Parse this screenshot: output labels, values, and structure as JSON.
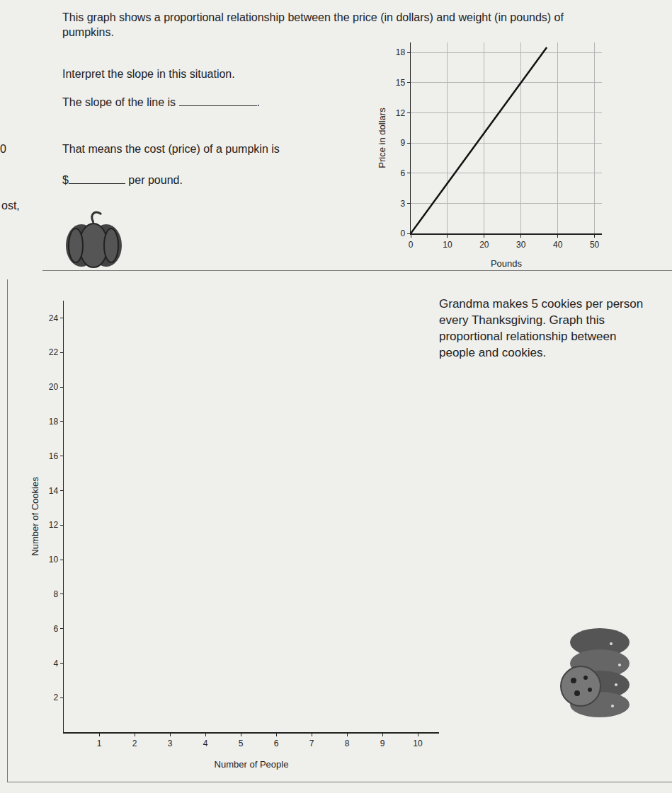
{
  "margin_fragments": [
    "0",
    "ost,"
  ],
  "problem1": {
    "intro": "This graph shows a proportional relationship between the price (in dollars) and weight (in pounds) of pumpkins.",
    "prompt": "Interpret the slope in this situation.",
    "slope_before": "The slope of the line is",
    "slope_after": ".",
    "meaning": "That means the cost (price) of a pumpkin is",
    "cost_before": "$",
    "cost_after": "per pound."
  },
  "problem2": {
    "text": "Grandma makes 5 cookies per person every Thanksgiving. Graph this proportional relationship between people and cookies."
  },
  "chart_data": [
    {
      "type": "line",
      "x_label": "Pounds",
      "y_label": "Price in dollars",
      "x": [
        0,
        37
      ],
      "values": [
        0,
        18.5
      ],
      "color": "#111111",
      "xlim": [
        0,
        52
      ],
      "xticks": [
        0,
        10,
        20,
        30,
        40,
        50
      ],
      "ylim": [
        0,
        19
      ],
      "yticks": [
        0,
        3,
        6,
        9,
        12,
        15,
        18
      ],
      "grid": true
    },
    {
      "type": "scatter",
      "x_label": "Number of People",
      "y_label": "Number of Cookies",
      "x": [],
      "values": [],
      "color": "#111111",
      "xlim": [
        0,
        10.6
      ],
      "xticks": [
        1,
        2,
        3,
        4,
        5,
        6,
        7,
        8,
        9,
        10
      ],
      "ylim": [
        0,
        25
      ],
      "yticks": [
        2,
        4,
        6,
        8,
        10,
        12,
        14,
        16,
        18,
        20,
        22,
        24
      ],
      "grid": false
    }
  ]
}
